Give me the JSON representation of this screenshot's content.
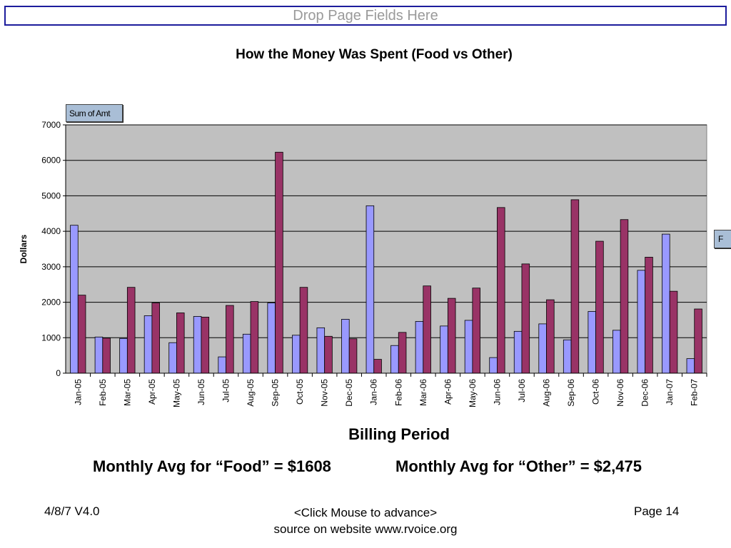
{
  "drop_page_fields": "Drop Page Fields Here",
  "sum_of_amt": "Sum of Amt",
  "series_field": "F",
  "averages": {
    "food": "Monthly Avg for “Food” = $1608",
    "other": "Monthly Avg for “Other” = $2,475"
  },
  "footer": {
    "left": "4/8/7   V4.0",
    "center_line1": "<Click Mouse to advance>",
    "center_line2": "source on website www.rvoice.org",
    "right": "Page 14"
  },
  "colors": {
    "food": "#9999ff",
    "other": "#993366",
    "plot_bg": "#c0c0c0"
  },
  "chart_data": {
    "type": "bar",
    "title": "How the Money Was Spent (Food vs Other)",
    "xlabel": "Billing Period",
    "ylabel": "Dollars",
    "ylim": [
      0,
      7000
    ],
    "yticks": [
      "0",
      "1000",
      "2000",
      "3000",
      "4000",
      "5000",
      "6000",
      "7000"
    ],
    "grid": true,
    "categories": [
      "Jan-05",
      "Feb-05",
      "Mar-05",
      "Apr-05",
      "May-05",
      "Jun-05",
      "Jul-05",
      "Aug-05",
      "Sep-05",
      "Oct-05",
      "Nov-05",
      "Dec-05",
      "Jan-06",
      "Feb-06",
      "Mar-06",
      "Apr-06",
      "May-06",
      "Jun-06",
      "Jul-06",
      "Aug-06",
      "Sep-06",
      "Oct-06",
      "Nov-06",
      "Dec-06",
      "Jan-07",
      "Feb-07"
    ],
    "series": [
      {
        "values": [
          4170,
          1020,
          980,
          1620,
          860,
          1600,
          460,
          1100,
          1980,
          1070,
          1280,
          1520,
          4720,
          780,
          1460,
          1330,
          1490,
          440,
          1180,
          1390,
          940,
          1740,
          1210,
          2900,
          3920,
          410
        ]
      },
      {
        "values": [
          2200,
          990,
          2420,
          1980,
          1700,
          1580,
          1910,
          2020,
          6230,
          2420,
          1040,
          970,
          390,
          1150,
          2460,
          2110,
          2400,
          4670,
          3080,
          2070,
          4890,
          3720,
          4330,
          3270,
          2310,
          1810
        ]
      }
    ]
  }
}
